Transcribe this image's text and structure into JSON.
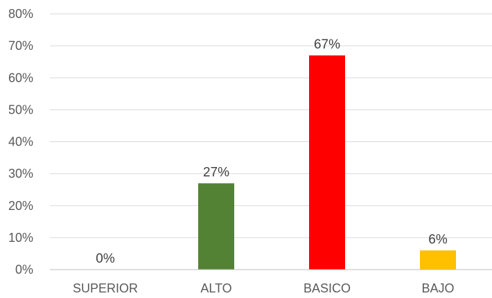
{
  "chart_data": {
    "type": "bar",
    "title": "",
    "xlabel": "",
    "ylabel": "",
    "categories": [
      "SUPERIOR",
      "ALTO",
      "BASICO",
      "BAJO"
    ],
    "values": [
      0,
      27,
      67,
      6
    ],
    "value_labels": [
      "0%",
      "27%",
      "67%",
      "6%"
    ],
    "bar_colors": [
      "#4472c4",
      "#548235",
      "#ff0000",
      "#ffc000"
    ],
    "ylim": [
      0,
      80
    ],
    "yticks": [
      0,
      10,
      20,
      30,
      40,
      50,
      60,
      70,
      80
    ],
    "ytick_labels": [
      "0%",
      "10%",
      "20%",
      "30%",
      "40%",
      "50%",
      "60%",
      "70%",
      "80%"
    ],
    "grid": true,
    "legend": "none"
  }
}
